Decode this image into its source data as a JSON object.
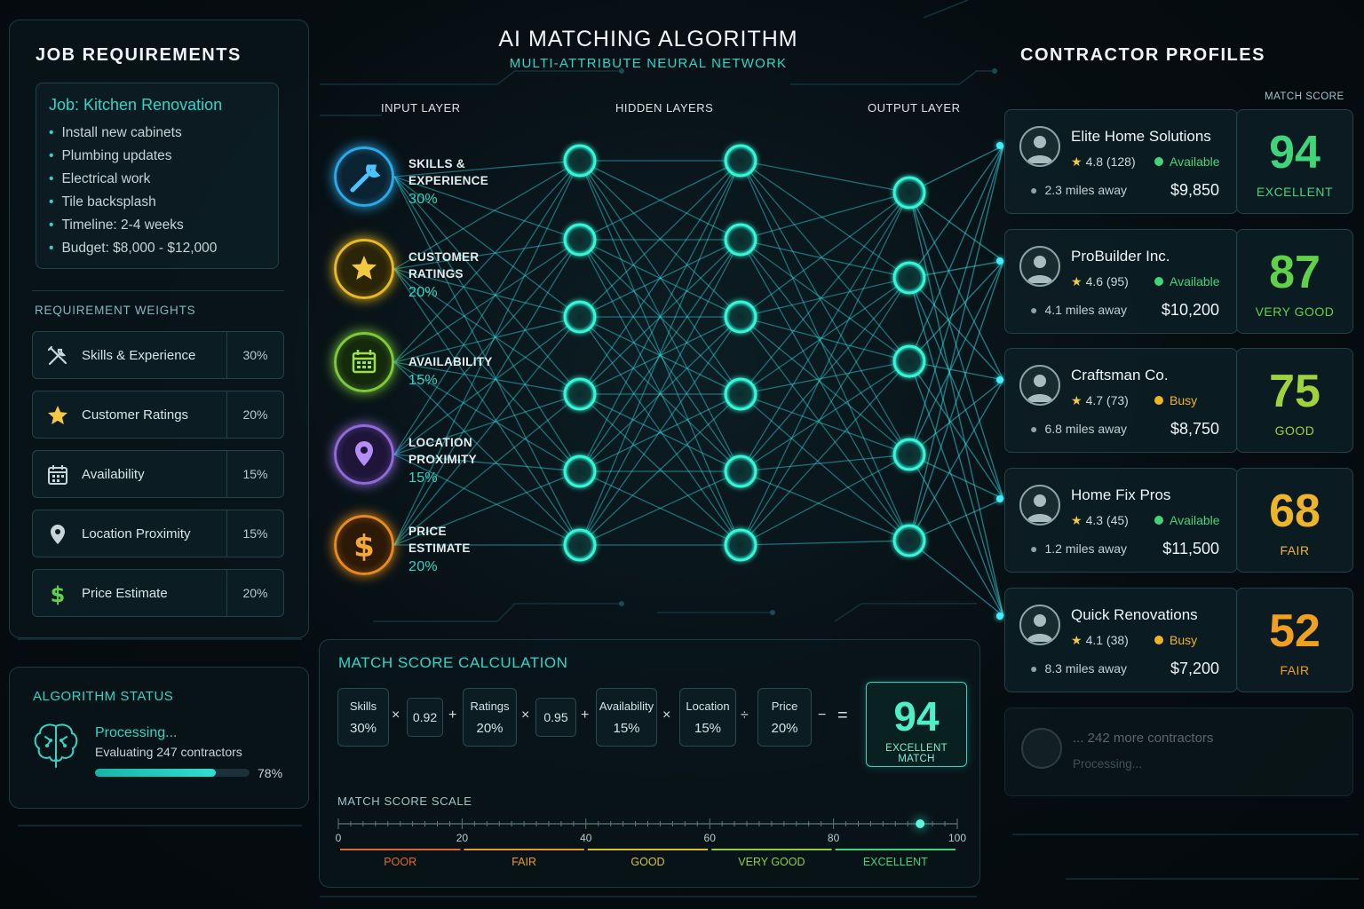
{
  "job_requirements": {
    "heading": "JOB REQUIREMENTS",
    "job_title": "Job: Kitchen Renovation",
    "items": [
      "Install new cabinets",
      "Plumbing updates",
      "Electrical work",
      "Tile backsplash",
      "Timeline: 2-4 weeks",
      "Budget: $8,000 - $12,000"
    ]
  },
  "weights": {
    "heading": "REQUIREMENT WEIGHTS",
    "rows": [
      {
        "label": "Skills & Experience",
        "pct": "30%",
        "icon": "tools-icon"
      },
      {
        "label": "Customer Ratings",
        "pct": "20%",
        "icon": "star-icon"
      },
      {
        "label": "Availability",
        "pct": "15%",
        "icon": "calendar-icon"
      },
      {
        "label": "Location Proximity",
        "pct": "15%",
        "icon": "location-pin-icon"
      },
      {
        "label": "Price Estimate",
        "pct": "20%",
        "icon": "dollar-icon"
      }
    ]
  },
  "status": {
    "heading": "ALGORITHM STATUS",
    "line1": "Processing...",
    "line2": "Evaluating 247 contractors",
    "progress": 0.78,
    "progress_label": "78%"
  },
  "network": {
    "title": "AI MATCHING ALGORITHM",
    "subtitle": "MULTI-ATTRIBUTE NEURAL NETWORK",
    "input_label": "INPUT LAYER",
    "hidden_label": "HIDDEN LAYERS",
    "output_label": "OUTPUT LAYER",
    "inputs": [
      {
        "line1": "SKILLS &",
        "line2": "EXPERIENCE",
        "pct": "30%",
        "color": "#2aa8e8",
        "icon": "wrench-icon"
      },
      {
        "line1": "CUSTOMER",
        "line2": "RATINGS",
        "pct": "20%",
        "color": "#e8b923",
        "icon": "star-icon"
      },
      {
        "line1": "AVAILABILITY",
        "line2": "",
        "pct": "15%",
        "color": "#7cc93a",
        "icon": "calendar-icon"
      },
      {
        "line1": "LOCATION",
        "line2": "PROXIMITY",
        "pct": "15%",
        "color": "#8f6ad8",
        "icon": "location-pin-icon"
      },
      {
        "line1": "PRICE",
        "line2": "ESTIMATE",
        "pct": "20%",
        "color": "#e58a1c",
        "icon": "dollar-icon"
      }
    ]
  },
  "calculation": {
    "heading": "MATCH SCORE CALCULATION",
    "boxes": [
      {
        "label": "Skills",
        "value": "30%"
      },
      {
        "label": "Ratings",
        "value": "20%"
      },
      {
        "label": "Availability",
        "value": "15%"
      },
      {
        "label": "Location",
        "value": "15%"
      },
      {
        "label": "Price",
        "value": "20%"
      }
    ],
    "factors": [
      "0.92",
      "0.95"
    ],
    "ops": [
      "×",
      "+",
      "×",
      "+",
      "×",
      "÷",
      "−",
      "="
    ],
    "result_value": "94",
    "result_label": "EXCELLENT MATCH"
  },
  "scale": {
    "heading": "MATCH SCORE SCALE",
    "ticks": [
      "0",
      "20",
      "40",
      "60",
      "80",
      "100"
    ],
    "marker_value": 94,
    "bands": [
      {
        "label": "POOR",
        "color": "#e0692a"
      },
      {
        "label": "FAIR",
        "color": "#e59a2a"
      },
      {
        "label": "GOOD",
        "color": "#d9c12e"
      },
      {
        "label": "VERY GOOD",
        "color": "#8fcf3c"
      },
      {
        "label": "EXCELLENT",
        "color": "#3fd67a"
      }
    ]
  },
  "contractors": {
    "heading": "CONTRACTOR PROFILES",
    "score_heading": "MATCH SCORE",
    "items": [
      {
        "name": "Elite Home Solutions",
        "rating": "4.8",
        "reviews": "(128)",
        "status": "Available",
        "status_color": "#3fd67a",
        "distance": "2.3 miles away",
        "price": "$9,850",
        "score": "94",
        "rank": "EXCELLENT",
        "score_color": "#3fd67a"
      },
      {
        "name": "ProBuilder Inc.",
        "rating": "4.6",
        "reviews": "(95)",
        "status": "Available",
        "status_color": "#3fd67a",
        "distance": "4.1 miles away",
        "price": "$10,200",
        "score": "87",
        "rank": "VERY GOOD",
        "score_color": "#5fd24a"
      },
      {
        "name": "Craftsman Co.",
        "rating": "4.7",
        "reviews": "(73)",
        "status": "Busy",
        "status_color": "#f0b429",
        "distance": "6.8 miles away",
        "price": "$8,750",
        "score": "75",
        "rank": "GOOD",
        "score_color": "#9fd23c"
      },
      {
        "name": "Home Fix Pros",
        "rating": "4.3",
        "reviews": "(45)",
        "status": "Available",
        "status_color": "#3fd67a",
        "distance": "1.2 miles away",
        "price": "$11,500",
        "score": "68",
        "rank": "FAIR",
        "score_color": "#f0b429"
      },
      {
        "name": "Quick Renovations",
        "rating": "4.1",
        "reviews": "(38)",
        "status": "Busy",
        "status_color": "#f0b429",
        "distance": "8.3 miles away",
        "price": "$7,200",
        "score": "52",
        "rank": "FAIR",
        "score_color": "#f0a020"
      }
    ],
    "more_line1": "... 242 more contractors",
    "more_line2": "Processing..."
  }
}
